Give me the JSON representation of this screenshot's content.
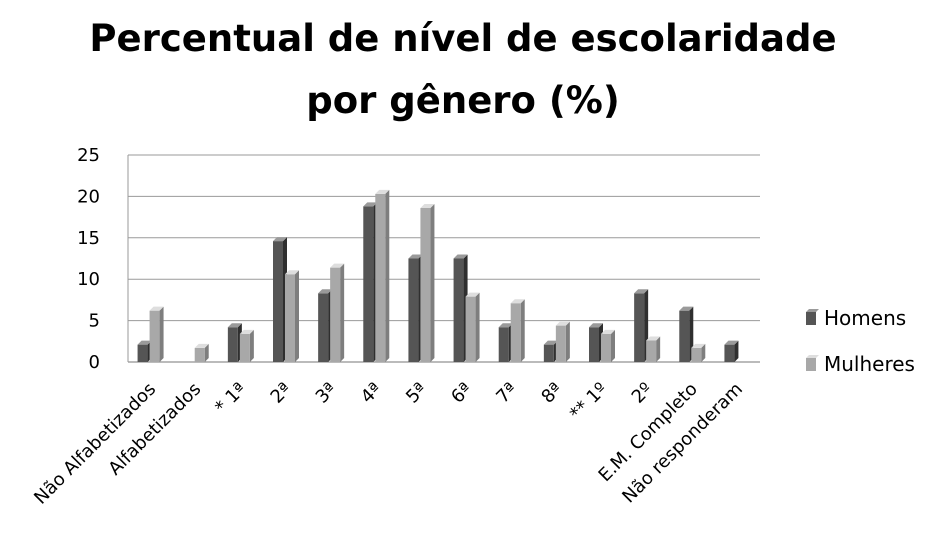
{
  "chart_data": {
    "type": "bar",
    "title_lines": [
      "Percentual de nível de escolaridade",
      "por gênero (%)"
    ],
    "categories": [
      "Não Alfabetizados",
      "Alfabetizados",
      "* 1ª",
      "2ª",
      "3ª",
      "4ª",
      "5ª",
      "6ª",
      "7ª",
      "8ª",
      "** 1º",
      "2º",
      "E.M. Completo",
      "Não responderam"
    ],
    "series": [
      {
        "name": "Homens",
        "values": [
          2.1,
          0,
          4.2,
          14.6,
          8.3,
          18.8,
          12.5,
          12.5,
          4.2,
          2.1,
          4.2,
          8.3,
          6.2,
          2.1
        ]
      },
      {
        "name": "Mulheres",
        "values": [
          6.2,
          1.7,
          3.4,
          10.6,
          11.4,
          20.3,
          18.6,
          7.9,
          7.1,
          4.4,
          3.4,
          2.6,
          1.7,
          0
        ]
      }
    ],
    "ylim": [
      0,
      25
    ],
    "yticks": [
      0,
      5,
      10,
      15,
      20,
      25
    ],
    "grid": true,
    "legend_position": "right",
    "colors": {
      "Homens": {
        "front": "#555555",
        "top": "#9a9a9a",
        "side": "#2f2f2f"
      },
      "Mulheres": {
        "front": "#a8a8a8",
        "top": "#dedede",
        "side": "#7e7e7e"
      }
    }
  }
}
